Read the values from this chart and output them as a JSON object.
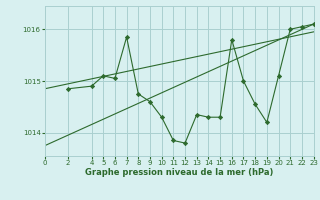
{
  "background_color": "#d8f0f0",
  "grid_color": "#aacfcf",
  "line_color": "#2d6a2d",
  "text_color": "#2d6a2d",
  "xlabel": "Graphe pression niveau de la mer (hPa)",
  "ylim": [
    1013.55,
    1016.45
  ],
  "xlim": [
    0,
    23
  ],
  "yticks": [
    1014,
    1015,
    1016
  ],
  "xticks": [
    0,
    2,
    4,
    5,
    6,
    7,
    8,
    9,
    10,
    11,
    12,
    13,
    14,
    15,
    16,
    17,
    18,
    19,
    20,
    21,
    22,
    23
  ],
  "series_main": {
    "x": [
      2,
      4,
      5,
      6,
      7,
      8,
      9,
      10,
      11,
      12,
      13,
      14,
      15,
      16,
      17,
      18,
      19,
      20,
      21,
      22,
      23
    ],
    "y": [
      1014.85,
      1014.9,
      1015.1,
      1015.05,
      1015.85,
      1014.75,
      1014.6,
      1014.3,
      1013.85,
      1013.8,
      1014.35,
      1014.3,
      1014.3,
      1015.8,
      1015.0,
      1014.55,
      1014.2,
      1015.1,
      1016.0,
      1016.05,
      1016.1
    ]
  },
  "trend_low": {
    "x": [
      0,
      23
    ],
    "y": [
      1013.75,
      1016.1
    ]
  },
  "trend_high": {
    "x": [
      0,
      23
    ],
    "y": [
      1014.85,
      1015.95
    ]
  }
}
